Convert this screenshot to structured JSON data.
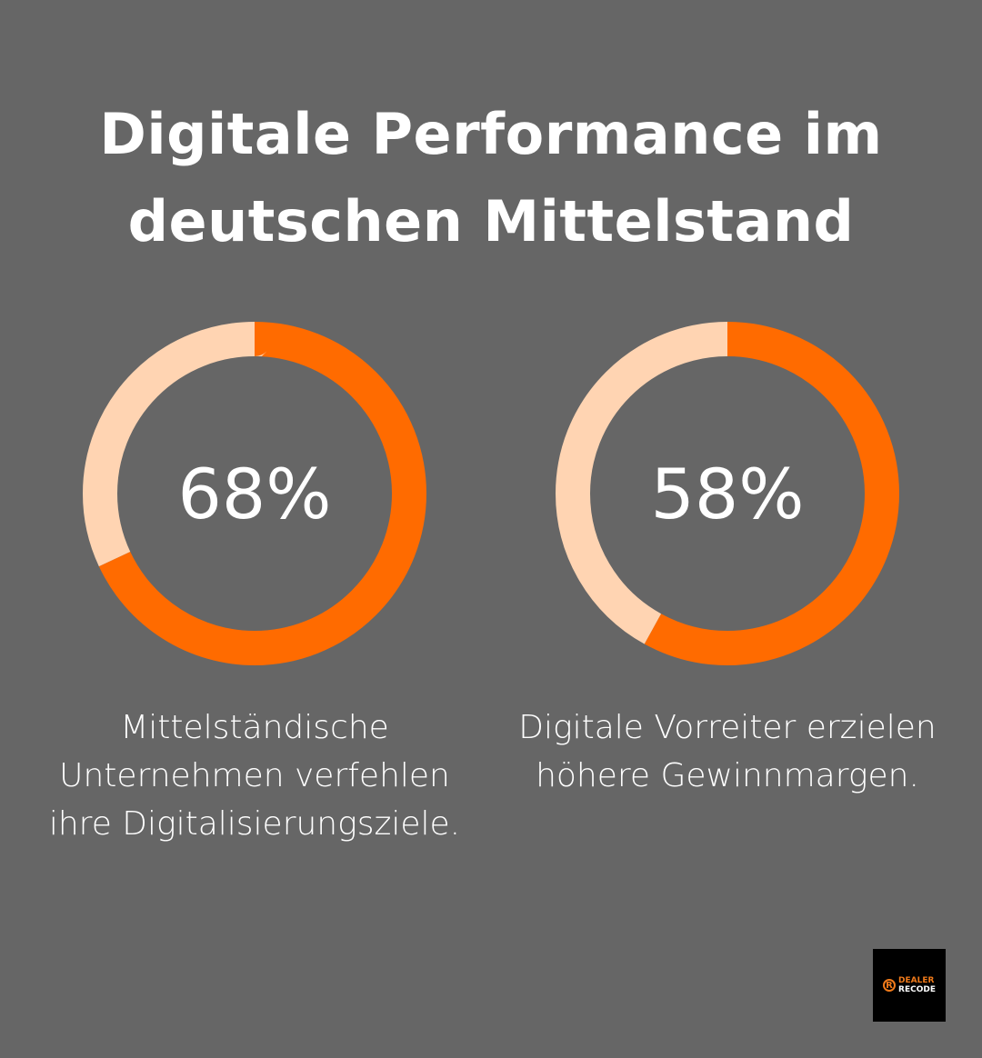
{
  "title": "Digitale Performance im deutschen Mittelstand",
  "colors": {
    "background": "#666666",
    "filled": "#FF6B00",
    "remaining": "#FFD4B2"
  },
  "chart_data": [
    {
      "type": "pie",
      "variant": "donut",
      "values": [
        68,
        32
      ],
      "label": "68%",
      "caption": "Mittelständische Unternehmen verfehlen ihre Digitalisierungsziele."
    },
    {
      "type": "pie",
      "variant": "donut",
      "values": [
        58,
        42
      ],
      "label": "58%",
      "caption": "Digitale Vorreiter erzielen höhere Gewinnmargen."
    }
  ],
  "logo": {
    "line1": "DEALER",
    "line2": "RECODE",
    "mark": "R"
  }
}
